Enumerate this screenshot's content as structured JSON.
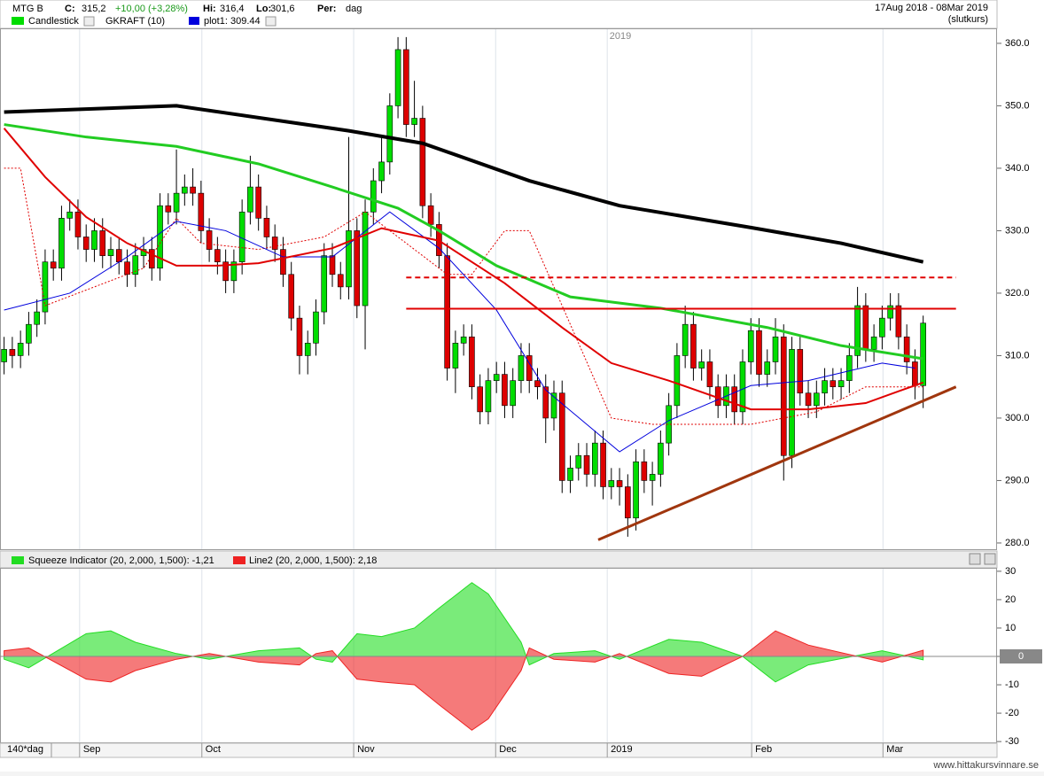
{
  "header": {
    "symbol": "MTG B",
    "close_label": "C:",
    "close": "315,2",
    "change": "+10,00 (+3,28%)",
    "high_label": "Hi:",
    "high": "316,4",
    "low_label": "Lo:",
    "low": "301,6",
    "period_label": "Per:",
    "period": "dag",
    "date_range": "17Aug 2018 - 08Mar 2019",
    "price_type": "(slutkurs)"
  },
  "watermark": "www.hittakursvinnare.se",
  "chart_data": [
    {
      "type": "candlestick",
      "name": "Candlestick",
      "color": "#00dd00",
      "up_color": "#00dd00",
      "down_color": "#dd0000",
      "year_label": "2019",
      "xlim": [
        0.5,
        122
      ],
      "ylim": [
        279,
        362.4
      ],
      "yticks": [
        {
          "value": 360,
          "label": "360.0"
        },
        {
          "value": 350,
          "label": "350.0"
        },
        {
          "value": 340,
          "label": "340.0"
        },
        {
          "value": 330,
          "label": "330.0"
        },
        {
          "value": 320,
          "label": "320.0"
        },
        {
          "value": 310,
          "label": "310.0"
        },
        {
          "value": 300,
          "label": "300.0"
        },
        {
          "value": 290,
          "label": "290.0"
        },
        {
          "value": 280,
          "label": "280.0"
        }
      ],
      "xticks": [
        {
          "value": 10.2,
          "label": "Sep"
        },
        {
          "value": 25.1,
          "label": "Oct"
        },
        {
          "value": 43.6,
          "label": "Nov"
        },
        {
          "value": 60.9,
          "label": "Dec"
        },
        {
          "value": 74.5,
          "label": "2019"
        },
        {
          "value": 92.1,
          "label": "Feb"
        },
        {
          "value": 108.1,
          "label": "Mar"
        }
      ],
      "open": [
        309,
        311,
        310,
        312,
        315,
        317,
        325,
        324,
        332,
        333,
        329,
        327,
        330,
        326,
        327,
        325,
        323,
        326,
        327,
        324,
        334,
        333,
        336,
        337,
        336,
        330,
        327,
        325,
        322,
        325,
        333,
        337,
        332,
        329,
        327,
        323,
        316,
        310,
        312,
        317,
        326,
        323,
        321,
        330,
        318,
        333,
        338,
        341,
        350,
        359,
        347,
        348,
        334,
        331,
        326,
        308,
        312,
        313,
        305,
        301,
        306,
        307,
        302,
        306,
        310,
        306,
        305,
        300,
        304,
        290,
        292,
        294,
        291,
        296,
        289,
        290,
        289,
        284,
        293,
        290,
        291,
        296,
        302,
        310,
        315,
        308,
        309,
        305,
        302,
        305,
        301,
        309,
        314,
        307,
        309,
        313,
        294,
        311,
        304,
        302,
        304,
        306,
        305,
        306,
        310,
        318,
        311,
        313,
        316,
        318,
        313,
        309,
        305.2
      ],
      "high": [
        313,
        313,
        314,
        317,
        319,
        327,
        327,
        334,
        335,
        335,
        331,
        332,
        332,
        329,
        329,
        327,
        328,
        329,
        329,
        336,
        336,
        343,
        339,
        340,
        338,
        332,
        329,
        327,
        327,
        335,
        342,
        339,
        334,
        331,
        329,
        325,
        318,
        314,
        319,
        328,
        328,
        325,
        345,
        332,
        335,
        340,
        345,
        352,
        361,
        361,
        354,
        350,
        336,
        333,
        328,
        314,
        315,
        315,
        307,
        308,
        309,
        309,
        308,
        312,
        312,
        308,
        307,
        306,
        306,
        294,
        296,
        296,
        298,
        298,
        292,
        292,
        291,
        295,
        295,
        293,
        298,
        304,
        312,
        318,
        317,
        311,
        311,
        307,
        307,
        307,
        311,
        316,
        316,
        311,
        316,
        315,
        313,
        313,
        306,
        306,
        308,
        308,
        308,
        312,
        321,
        320,
        315,
        318,
        320,
        320,
        315,
        311,
        316.4
      ],
      "low": [
        307,
        308,
        308,
        310,
        313,
        315,
        322,
        322,
        330,
        327,
        325,
        325,
        324,
        324,
        323,
        321,
        321,
        324,
        322,
        322,
        331,
        331,
        334,
        334,
        328,
        325,
        323,
        320,
        320,
        323,
        331,
        330,
        327,
        325,
        321,
        314,
        307,
        307,
        310,
        315,
        321,
        319,
        319,
        316,
        311,
        331,
        336,
        339,
        348,
        345,
        345,
        332,
        329,
        324,
        306,
        304,
        310,
        303,
        299,
        299,
        304,
        300,
        300,
        304,
        304,
        303,
        296,
        298,
        288,
        288,
        290,
        289,
        289,
        287,
        287,
        286,
        281,
        282,
        288,
        286,
        289,
        294,
        300,
        308,
        306,
        306,
        303,
        300,
        300,
        299,
        299,
        307,
        305,
        305,
        307,
        290,
        292,
        302,
        300,
        300,
        302,
        303,
        303,
        304,
        308,
        309,
        309,
        311,
        314,
        311,
        307,
        303,
        301.6
      ],
      "close": [
        311,
        310,
        312,
        315,
        317,
        325,
        324,
        332,
        333,
        329,
        327,
        330,
        326,
        327,
        325,
        323,
        326,
        327,
        324,
        334,
        333,
        336,
        337,
        336,
        330,
        327,
        325,
        322,
        325,
        333,
        337,
        332,
        329,
        327,
        323,
        316,
        310,
        312,
        317,
        326,
        323,
        321,
        330,
        318,
        333,
        338,
        341,
        350,
        359,
        347,
        348,
        334,
        331,
        326,
        308,
        312,
        313,
        305,
        301,
        306,
        307,
        302,
        306,
        310,
        306,
        305,
        300,
        304,
        290,
        292,
        294,
        291,
        296,
        289,
        290,
        289,
        284,
        293,
        290,
        291,
        296,
        302,
        310,
        315,
        308,
        309,
        305,
        302,
        305,
        301,
        309,
        314,
        307,
        309,
        313,
        294,
        311,
        304,
        302,
        304,
        306,
        305,
        306,
        310,
        318,
        311,
        313,
        316,
        318,
        313,
        309,
        305.2,
        315.2
      ],
      "lines": [
        {
          "name": "GKRAFT (10)",
          "color": "#e00000",
          "style": "dotted",
          "x": [
            1,
            3,
            6,
            10,
            18,
            22,
            25,
            32,
            40,
            45,
            50,
            55,
            58,
            62,
            65,
            70,
            75,
            80,
            92,
            100,
            106,
            113
          ],
          "values": [
            340,
            340,
            318,
            320,
            324,
            332,
            328,
            327,
            329,
            333,
            328,
            323,
            323,
            330,
            330,
            315,
            300,
            299,
            299,
            301,
            305,
            305
          ]
        },
        {
          "name": "plot1: 309.44",
          "color": "#0000dd",
          "style": "thin",
          "x": [
            1,
            9,
            16,
            22,
            28,
            35,
            41,
            48,
            54,
            61,
            67,
            76,
            82,
            92,
            99,
            108,
            112
          ],
          "values": [
            317.3,
            320,
            325.8,
            331.5,
            330,
            325.8,
            325.8,
            333,
            327.2,
            317.3,
            304.5,
            294.6,
            299.6,
            305.2,
            306,
            308.8,
            308
          ]
        },
        {
          "color": "#000000",
          "style": "thick",
          "x": [
            1,
            22,
            43,
            52,
            65,
            76,
            92,
            103,
            113
          ],
          "values": [
            349,
            350,
            346,
            344,
            338,
            334,
            330.5,
            328,
            325
          ]
        },
        {
          "color": "#22cc22",
          "style": "medium",
          "x": [
            1,
            11,
            22,
            32,
            41,
            49,
            54,
            61,
            70,
            81,
            94,
            103,
            113
          ],
          "values": [
            347,
            345,
            343.5,
            340.7,
            337,
            333.6,
            330,
            324.4,
            319.4,
            317.6,
            314.5,
            311.6,
            309.5
          ]
        },
        {
          "color": "#e00000",
          "style": "normal",
          "x": [
            1,
            6,
            11,
            16,
            22,
            27,
            32,
            41,
            47,
            54,
            62,
            69,
            75,
            82,
            92,
            99,
            106,
            113
          ],
          "values": [
            346.4,
            338.6,
            332.2,
            328,
            324.4,
            324.4,
            324.8,
            327.2,
            330.4,
            328.4,
            321.6,
            314.5,
            308.8,
            306,
            301.4,
            301.4,
            302.4,
            305.7
          ]
        },
        {
          "color": "#e00000",
          "style": "normal",
          "x": [
            50,
            117
          ],
          "values": [
            317.5,
            317.5
          ]
        },
        {
          "color": "#e00000",
          "style": "dashed",
          "x": [
            50,
            117
          ],
          "values": [
            322.5,
            322.5
          ]
        },
        {
          "color": "#a0360e",
          "style": "medium",
          "x": [
            73.4,
            117
          ],
          "values": [
            280.5,
            305
          ]
        }
      ]
    },
    {
      "type": "area",
      "period_label": "140*dag",
      "xlim": [
        0.5,
        122
      ],
      "ylim": [
        -30.9,
        30.9
      ],
      "yticks": [
        30,
        20,
        10,
        0,
        -10,
        -20,
        -30
      ],
      "series": [
        {
          "name": "Squeeze Indicator (20, 2,000, 1,500): -1,21",
          "color": "#22dd22",
          "x": [
            1,
            4,
            11,
            14,
            17,
            22,
            26,
            32,
            37,
            39,
            41,
            44,
            47,
            51,
            54,
            58,
            60,
            64,
            65,
            68,
            73,
            76,
            82,
            86,
            91,
            95,
            99,
            108,
            113
          ],
          "values": [
            -1,
            -4,
            8,
            9,
            5,
            1,
            -1,
            2,
            3,
            -1,
            -2,
            8,
            7,
            10,
            17,
            26,
            22,
            5,
            -3,
            1,
            2,
            -1,
            6,
            5,
            0,
            -9,
            -3,
            2,
            -1.21
          ]
        },
        {
          "name": "Line2 (20, 2,000, 1,500): 2,18",
          "color": "#ee2222",
          "x": [
            1,
            4,
            11,
            14,
            17,
            22,
            26,
            32,
            37,
            39,
            41,
            44,
            47,
            51,
            54,
            58,
            60,
            64,
            65,
            68,
            73,
            76,
            82,
            86,
            91,
            95,
            99,
            108,
            113
          ],
          "values": [
            2,
            3,
            -8,
            -9,
            -5,
            -1,
            1,
            -2,
            -3,
            1,
            2,
            -8,
            -9,
            -10,
            -17,
            -26,
            -22,
            -5,
            3,
            -1,
            -2,
            1,
            -6,
            -7,
            0,
            9,
            4,
            -2,
            2.18
          ]
        }
      ]
    }
  ]
}
